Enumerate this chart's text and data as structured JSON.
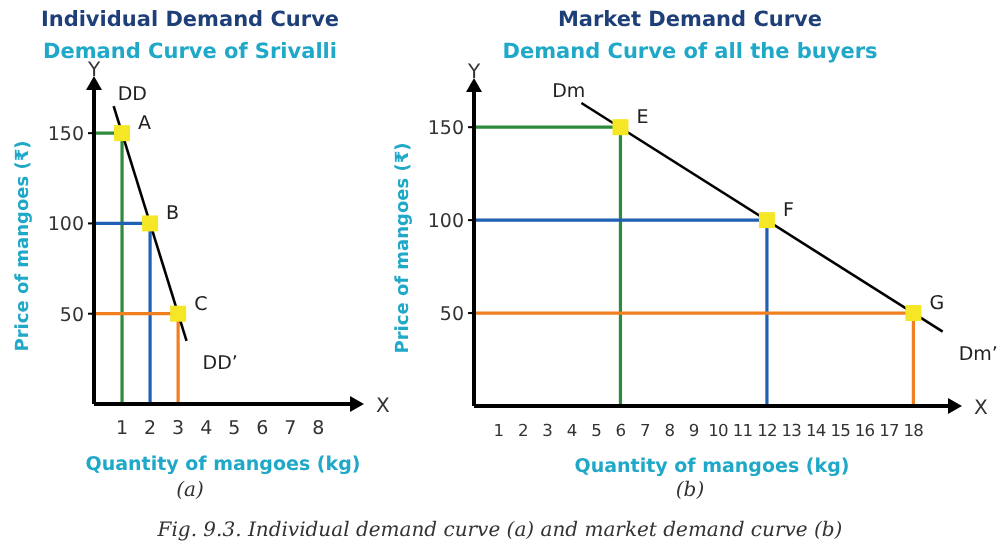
{
  "chart_data": [
    {
      "type": "line",
      "title": "Individual Demand Curve",
      "subtitle": "Demand Curve of Srivalli",
      "xlabel": "Quantity of mangoes (kg)",
      "ylabel": "Price of mangoes (₹)",
      "xlim": [
        0,
        9.2
      ],
      "ylim": [
        0,
        175
      ],
      "xticks": [
        1,
        2,
        3,
        4,
        5,
        6,
        7,
        8
      ],
      "yticks": [
        50,
        100,
        150
      ],
      "series": [
        {
          "color": "#2e8b3e",
          "marker": "none",
          "x": [
            0,
            1,
            1
          ],
          "values": [
            150,
            150,
            0
          ]
        },
        {
          "color": "#1f5fb4",
          "marker": "none",
          "x": [
            0,
            2,
            2
          ],
          "values": [
            100,
            100,
            0
          ]
        },
        {
          "color": "#f07f1f",
          "marker": "none",
          "x": [
            0,
            3,
            3
          ],
          "values": [
            50,
            50,
            0
          ]
        },
        {
          "color": "#000000",
          "marker": "none",
          "x": [
            0.7,
            3.3
          ],
          "values": [
            165,
            35
          ]
        },
        {
          "type": "scatter",
          "marker": "square",
          "color": "#f5e626",
          "x": [
            1,
            2,
            3
          ],
          "values": [
            150,
            100,
            50
          ]
        }
      ],
      "annotations": [
        "X",
        "Y",
        "(a)",
        "Fig. 9.3. Individual demand curve (a) and market demand curve (b)",
        {
          "text": "A",
          "x": 1,
          "y": 150
        },
        {
          "text": "B",
          "x": 2,
          "y": 100
        },
        {
          "text": "C",
          "x": 3,
          "y": 50
        },
        {
          "text": "DD",
          "x": 0.7,
          "y": 165
        },
        {
          "text": "DD’",
          "x": 3.3,
          "y": 35
        }
      ]
    },
    {
      "type": "line",
      "title": "Market Demand Curve",
      "subtitle": "Demand Curve of all the buyers",
      "xlabel": "Quantity of mangoes (kg)",
      "ylabel": "Price of mangoes (₹)",
      "xlim": [
        0,
        19.5
      ],
      "ylim": [
        0,
        170
      ],
      "xticks": [
        1,
        2,
        3,
        4,
        5,
        6,
        7,
        8,
        9,
        10,
        11,
        12,
        13,
        14,
        15,
        16,
        17,
        18
      ],
      "yticks": [
        50,
        100,
        150
      ],
      "series": [
        {
          "color": "#2e8b3e",
          "marker": "none",
          "x": [
            0,
            6,
            6
          ],
          "values": [
            150,
            150,
            0
          ]
        },
        {
          "color": "#1f5fb4",
          "marker": "none",
          "x": [
            0,
            12,
            12
          ],
          "values": [
            100,
            100,
            0
          ]
        },
        {
          "color": "#f07f1f",
          "marker": "none",
          "x": [
            0,
            18,
            18
          ],
          "values": [
            50,
            50,
            0
          ]
        },
        {
          "color": "#000000",
          "marker": "none",
          "x": [
            4.4,
            19.2
          ],
          "values": [
            163,
            40
          ]
        },
        {
          "type": "scatter",
          "marker": "square",
          "color": "#f5e626",
          "x": [
            6,
            12,
            18
          ],
          "values": [
            150,
            100,
            50
          ]
        }
      ],
      "annotations": [
        "X",
        "Y",
        "(b)",
        {
          "text": "E",
          "x": 6,
          "y": 150
        },
        {
          "text": "F",
          "x": 12,
          "y": 100
        },
        {
          "text": "G",
          "x": 18,
          "y": 50
        },
        {
          "text": "Dm",
          "x": 4.4,
          "y": 163
        },
        {
          "text": "Dm’",
          "x": 19.2,
          "y": 40
        }
      ]
    }
  ]
}
